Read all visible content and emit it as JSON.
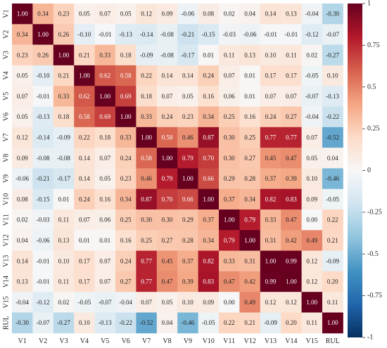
{
  "chart_data": {
    "type": "heatmap",
    "title": "",
    "xlabel": "",
    "ylabel": "",
    "labels": [
      "V1",
      "V2",
      "V3",
      "V4",
      "V5",
      "V6",
      "V7",
      "V8",
      "V9",
      "V10",
      "V11",
      "V12",
      "V13",
      "V14",
      "V15",
      "RUL"
    ],
    "matrix": [
      [
        1.0,
        0.34,
        0.23,
        0.05,
        0.07,
        0.05,
        0.12,
        0.09,
        -0.06,
        0.08,
        0.02,
        0.04,
        0.14,
        0.13,
        -0.04,
        -0.3
      ],
      [
        0.34,
        1.0,
        0.26,
        -0.1,
        -0.01,
        -0.13,
        -0.14,
        -0.08,
        -0.21,
        -0.15,
        -0.03,
        -0.06,
        -0.01,
        -0.01,
        -0.12,
        -0.07
      ],
      [
        0.23,
        0.26,
        1.0,
        0.21,
        0.33,
        0.18,
        -0.09,
        -0.08,
        -0.17,
        0.01,
        0.11,
        0.13,
        0.1,
        0.11,
        0.02,
        -0.27
      ],
      [
        0.05,
        -0.1,
        0.21,
        1.0,
        0.62,
        0.58,
        0.22,
        0.14,
        0.14,
        0.24,
        0.07,
        0.01,
        0.17,
        0.17,
        -0.05,
        0.1
      ],
      [
        0.07,
        -0.01,
        0.33,
        0.62,
        1.0,
        0.69,
        0.18,
        0.07,
        0.05,
        0.16,
        0.06,
        0.01,
        0.07,
        0.07,
        -0.07,
        -0.13
      ],
      [
        0.05,
        -0.13,
        0.18,
        0.58,
        0.69,
        1.0,
        0.33,
        0.24,
        0.23,
        0.34,
        0.25,
        0.16,
        0.24,
        0.27,
        -0.04,
        -0.22
      ],
      [
        0.12,
        -0.14,
        -0.09,
        0.22,
        0.18,
        0.33,
        1.0,
        0.58,
        0.46,
        0.87,
        0.3,
        0.25,
        0.77,
        0.77,
        0.07,
        -0.52
      ],
      [
        0.09,
        -0.08,
        -0.08,
        0.14,
        0.07,
        0.24,
        0.58,
        1.0,
        0.79,
        0.7,
        0.3,
        0.27,
        0.45,
        0.47,
        0.05,
        0.04
      ],
      [
        -0.06,
        -0.21,
        -0.17,
        0.14,
        0.05,
        0.23,
        0.46,
        0.79,
        1.0,
        0.66,
        0.29,
        0.28,
        0.37,
        0.39,
        0.1,
        -0.46
      ],
      [
        0.08,
        -0.15,
        0.01,
        0.24,
        0.16,
        0.34,
        0.87,
        0.7,
        0.66,
        1.0,
        0.37,
        0.34,
        0.82,
        0.83,
        0.09,
        -0.05
      ],
      [
        0.02,
        -0.03,
        0.11,
        0.07,
        0.06,
        0.25,
        0.3,
        0.3,
        0.29,
        0.37,
        1.0,
        0.79,
        0.33,
        0.47,
        0.0,
        0.22
      ],
      [
        0.04,
        -0.06,
        0.13,
        0.01,
        0.01,
        0.16,
        0.25,
        0.27,
        0.28,
        0.34,
        0.79,
        1.0,
        0.31,
        0.42,
        0.49,
        0.21
      ],
      [
        0.14,
        -0.01,
        0.1,
        0.17,
        0.07,
        0.24,
        0.77,
        0.45,
        0.37,
        0.82,
        0.33,
        0.31,
        1.0,
        0.99,
        0.12,
        -0.09
      ],
      [
        0.13,
        -0.01,
        0.11,
        0.17,
        0.07,
        0.27,
        0.77,
        0.47,
        0.39,
        0.83,
        0.47,
        0.42,
        0.99,
        1.0,
        0.12,
        0.2
      ],
      [
        -0.04,
        -0.12,
        0.02,
        -0.05,
        -0.07,
        -0.04,
        0.07,
        0.05,
        0.1,
        0.09,
        0.0,
        0.49,
        0.12,
        0.12,
        1.0,
        0.11
      ],
      [
        -0.3,
        -0.07,
        -0.27,
        0.1,
        -0.13,
        -0.22,
        -0.52,
        0.04,
        -0.46,
        -0.05,
        0.22,
        0.21,
        -0.09,
        0.2,
        0.11,
        1.0
      ]
    ],
    "zlim": [
      -1,
      1
    ],
    "colorbar_ticks": [
      1,
      0.75,
      0.5,
      0.25,
      0,
      -0.25,
      -0.5,
      -0.75,
      -1
    ],
    "colorbar_tick_labels": [
      "1",
      "0.75",
      "0.5",
      "0.25",
      "0",
      "-0.25",
      "-0.5",
      "-0.75",
      "-1"
    ],
    "colormap": "RdBu_r",
    "colormap_stops": [
      "#053061",
      "#2166ac",
      "#4393c3",
      "#92c5de",
      "#d1e5f0",
      "#f7f7f7",
      "#fddbc7",
      "#f4a582",
      "#d6604d",
      "#b2182b",
      "#67001f"
    ],
    "value_format": "2 decimals"
  }
}
